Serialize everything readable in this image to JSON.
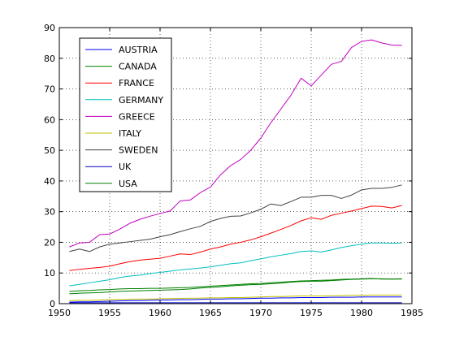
{
  "chart_data": {
    "type": "line",
    "title": "",
    "xlabel": "",
    "ylabel": "",
    "xlim": [
      1950,
      1985
    ],
    "ylim": [
      0,
      90
    ],
    "xticks": [
      "1950",
      "1955",
      "1960",
      "1965",
      "1970",
      "1975",
      "1980",
      "1985"
    ],
    "yticks": [
      "0",
      "10",
      "20",
      "30",
      "40",
      "50",
      "60",
      "70",
      "80",
      "90"
    ],
    "grid": true,
    "legend_position": "top-left",
    "x": [
      1951,
      1952,
      1953,
      1954,
      1955,
      1956,
      1957,
      1958,
      1959,
      1960,
      1961,
      1962,
      1963,
      1964,
      1965,
      1966,
      1967,
      1968,
      1969,
      1970,
      1971,
      1972,
      1973,
      1974,
      1975,
      1976,
      1977,
      1978,
      1979,
      1980,
      1981,
      1982,
      1983,
      1984
    ],
    "series": [
      {
        "name": "AUSTRIA",
        "color": "#0000ff",
        "values": [
          0.5,
          0.6,
          0.6,
          0.7,
          0.8,
          0.9,
          1.0,
          1.0,
          1.1,
          1.2,
          1.2,
          1.3,
          1.3,
          1.4,
          1.5,
          1.5,
          1.6,
          1.6,
          1.7,
          1.8,
          1.8,
          1.9,
          1.9,
          2.0,
          2.0,
          2.0,
          2.1,
          2.1,
          2.1,
          2.2,
          2.2,
          2.2,
          2.2,
          2.2
        ]
      },
      {
        "name": "CANADA",
        "color": "#008000",
        "values": [
          4.0,
          4.2,
          4.3,
          4.5,
          4.6,
          4.8,
          4.9,
          4.9,
          5.0,
          5.0,
          5.1,
          5.2,
          5.3,
          5.5,
          5.7,
          5.9,
          6.1,
          6.3,
          6.5,
          6.6,
          6.8,
          7.0,
          7.2,
          7.4,
          7.5,
          7.6,
          7.7,
          7.9,
          8.0,
          8.1,
          8.2,
          8.0,
          8.0,
          8.1
        ]
      },
      {
        "name": "FRANCE",
        "color": "#ff0000",
        "values": [
          10.8,
          11.2,
          11.5,
          11.8,
          12.2,
          13.0,
          13.7,
          14.2,
          14.5,
          14.8,
          15.5,
          16.2,
          16.0,
          16.8,
          17.8,
          18.5,
          19.4,
          20.0,
          20.8,
          21.8,
          23.0,
          24.2,
          25.5,
          27.0,
          28.0,
          27.5,
          28.8,
          29.5,
          30.2,
          31.0,
          31.8,
          31.7,
          31.2,
          32.0
        ]
      },
      {
        "name": "GERMANY",
        "color": "#00bfbf",
        "values": [
          5.8,
          6.3,
          6.8,
          7.3,
          7.8,
          8.5,
          9.0,
          9.3,
          9.8,
          10.2,
          10.6,
          11.0,
          11.3,
          11.6,
          12.0,
          12.5,
          13.0,
          13.3,
          14.0,
          14.6,
          15.3,
          15.8,
          16.3,
          17.0,
          17.2,
          16.8,
          17.5,
          18.3,
          18.9,
          19.4,
          19.8,
          19.8,
          19.7,
          19.8
        ]
      },
      {
        "name": "GREECE",
        "color": "#bf00bf",
        "values": [
          18.5,
          19.8,
          20.0,
          22.5,
          22.7,
          24.3,
          26.2,
          27.5,
          28.5,
          29.4,
          30.2,
          33.5,
          33.8,
          36.2,
          38.0,
          42.0,
          45.0,
          47.0,
          50.0,
          54.0,
          59.0,
          63.5,
          68.0,
          73.5,
          71.0,
          74.5,
          78.0,
          79.0,
          83.5,
          85.5,
          86.0,
          85.0,
          84.3,
          84.2
        ]
      },
      {
        "name": "ITALY",
        "color": "#bfbf00",
        "values": [
          1.0,
          1.1,
          1.1,
          1.2,
          1.3,
          1.4,
          1.4,
          1.5,
          1.5,
          1.6,
          1.7,
          1.7,
          1.8,
          1.8,
          1.9,
          1.9,
          2.0,
          2.0,
          2.1,
          2.2,
          2.3,
          2.3,
          2.4,
          2.5,
          2.5,
          2.5,
          2.6,
          2.6,
          2.7,
          2.7,
          2.8,
          2.8,
          2.8,
          2.8
        ]
      },
      {
        "name": "SWEDEN",
        "color": "#404040",
        "values": [
          17.0,
          17.8,
          17.0,
          18.5,
          19.4,
          19.8,
          20.2,
          20.6,
          21.0,
          21.8,
          22.5,
          23.5,
          24.4,
          25.2,
          26.8,
          27.8,
          28.5,
          28.6,
          29.6,
          30.8,
          32.5,
          32.0,
          33.3,
          34.7,
          34.7,
          35.3,
          35.3,
          34.3,
          35.4,
          37.1,
          37.6,
          37.6,
          37.9,
          38.7
        ]
      },
      {
        "name": "UK",
        "color": "#0000bf",
        "values": [
          0.3,
          0.3,
          0.3,
          0.3,
          0.3,
          0.3,
          0.3,
          0.3,
          0.3,
          0.3,
          0.3,
          0.3,
          0.3,
          0.3,
          0.3,
          0.3,
          0.3,
          0.3,
          0.3,
          0.3,
          0.3,
          0.3,
          0.3,
          0.3,
          0.3,
          0.3,
          0.3,
          0.3,
          0.3,
          0.3,
          0.3,
          0.3,
          0.3,
          0.3
        ]
      },
      {
        "name": "USA",
        "color": "#008000",
        "values": [
          3.2,
          3.4,
          3.5,
          3.6,
          3.8,
          4.0,
          4.1,
          4.2,
          4.3,
          4.4,
          4.5,
          4.6,
          4.8,
          5.1,
          5.3,
          5.5,
          5.8,
          6.0,
          6.2,
          6.3,
          6.5,
          6.7,
          7.0,
          7.2,
          7.3,
          7.3,
          7.5,
          7.7,
          7.9,
          8.0,
          8.1,
          8.1,
          8.0,
          8.0
        ]
      }
    ]
  }
}
